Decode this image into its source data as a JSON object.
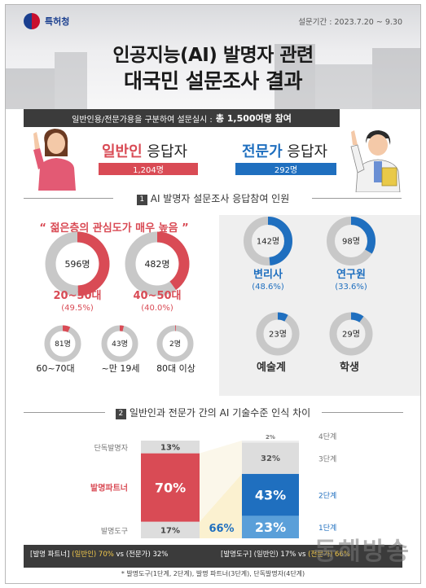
{
  "header": {
    "org": "특허청",
    "period": "설문기간 : 2023.7.20 ~ 9.30",
    "title_line1": "인공지능(AI) 발명자 관련",
    "title_line2": "대국민 설문조사 결과",
    "subtitle_prefix": "일반인용/전문가용을 구분하여 설문실시 :",
    "subtitle_total": "총 1,500여명 참여"
  },
  "groups": {
    "general": {
      "name": "일반인",
      "suffix": " 응답자",
      "count": "1,204명",
      "color": "#d94b55"
    },
    "expert": {
      "name": "전문가",
      "suffix": " 응답자",
      "count": "292명",
      "color": "#1f6fbf"
    }
  },
  "section1": {
    "num": "1",
    "title": "AI 발명자 설문조사 응답참여 인원"
  },
  "quote": "“ 젊은층의 관심도가 매우 높음 ”",
  "section2": {
    "num": "2",
    "title": "일반인과 전문가 간의 AI 기술수준 인식 차이"
  },
  "chart_data": [
    {
      "type": "pie",
      "title": "",
      "series_name": "일반인 연령별 응답자",
      "slices": [
        {
          "label": "20~30대",
          "count_label": "596명",
          "pct_label": "(49.5%)",
          "value": 49.5
        },
        {
          "label": "40~50대",
          "count_label": "482명",
          "pct_label": "(40.0%)",
          "value": 40.0
        },
        {
          "label": "60~70대",
          "count_label": "81명",
          "value": 6.7
        },
        {
          "label": "~만 19세",
          "count_label": "43명",
          "value": 3.6
        },
        {
          "label": "80대 이상",
          "count_label": "2명",
          "value": 0.2
        }
      ]
    },
    {
      "type": "pie",
      "title": "",
      "series_name": "전문가 직군별 응답자",
      "slices": [
        {
          "label": "변리사",
          "count_label": "142명",
          "pct_label": "(48.6%)",
          "value": 48.6
        },
        {
          "label": "연구원",
          "count_label": "98명",
          "pct_label": "(33.6%)",
          "value": 33.6
        },
        {
          "label": "예술계",
          "count_label": "23명",
          "value": 7.9
        },
        {
          "label": "학생",
          "count_label": "29명",
          "value": 9.9
        }
      ]
    },
    {
      "type": "bar",
      "title": "",
      "stacked": true,
      "series": [
        {
          "name": "일반인",
          "categories": [
            "발명도구",
            "발명파트너",
            "단독발명자"
          ],
          "values": [
            17,
            70,
            13
          ],
          "labels": [
            "17%",
            "70%",
            "13%"
          ]
        },
        {
          "name": "전문가",
          "categories": [
            "1단계",
            "2단계",
            "3단계",
            "4단계"
          ],
          "values": [
            23,
            43,
            32,
            2
          ],
          "labels": [
            "23%",
            "43%",
            "32%",
            "2%"
          ]
        }
      ],
      "combined_label": "66%"
    }
  ],
  "footer": {
    "row1_a_prefix": "[발명 파트너] ",
    "row1_a_hl": "(일반인) 70%",
    "row1_a_rest": " vs (전문가) 32%",
    "row1_b_prefix": "[발명도구] (일반인) 17% vs ",
    "row1_b_hl": "(전문가) 66%",
    "note": "* 발명도구(1단계, 2단계), 발명 파트너(3단계), 단독발명자(4단계)"
  },
  "watermark": "동해방송",
  "colors": {
    "general": "#d94b55",
    "expert": "#1f6fbf",
    "expert_light": "#5a9fd9",
    "grey": "#c8c8c8",
    "dark": "#3b3b3b"
  }
}
